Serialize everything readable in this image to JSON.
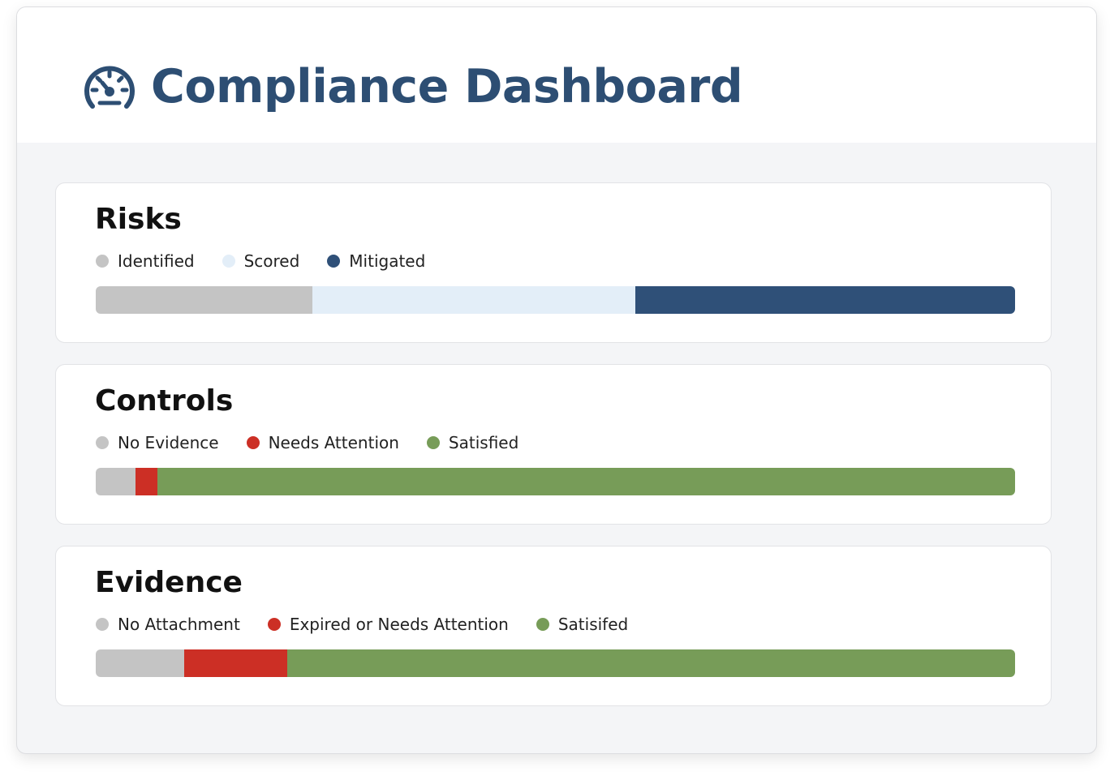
{
  "header": {
    "title": "Compliance Dashboard",
    "icon": "speedometer-icon",
    "color": "#2d4e73"
  },
  "cards": [
    {
      "title": "Risks",
      "segments": [
        {
          "label": "Identified",
          "color": "#c4c4c4",
          "fraction": 0.236
        },
        {
          "label": "Scored",
          "color": "#e3eef8",
          "fraction": 0.351
        },
        {
          "label": "Mitigated",
          "color": "#2f5078",
          "fraction": 0.413
        }
      ]
    },
    {
      "title": "Controls",
      "segments": [
        {
          "label": "No Evidence",
          "color": "#c4c4c4",
          "fraction": 0.043
        },
        {
          "label": "Needs Attention",
          "color": "#cc2f25",
          "fraction": 0.024
        },
        {
          "label": "Satisfied",
          "color": "#779c58",
          "fraction": 0.933
        }
      ]
    },
    {
      "title": "Evidence",
      "segments": [
        {
          "label": "No Attachment",
          "color": "#c4c4c4",
          "fraction": 0.096
        },
        {
          "label": "Expired or Needs Attention",
          "color": "#cc2f25",
          "fraction": 0.112
        },
        {
          "label": "Satisifed",
          "color": "#779c58",
          "fraction": 0.792
        }
      ]
    }
  ]
}
